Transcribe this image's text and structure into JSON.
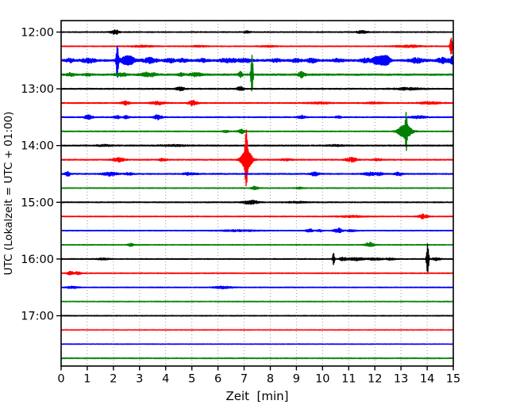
{
  "chart_data": {
    "type": "line",
    "subtype": "seismogram_dayplot",
    "title": "",
    "xlabel": "Zeit  [min]",
    "ylabel": "UTC (Lokalzeit = UTC + 01:00)",
    "x_range": [
      0,
      15
    ],
    "x_ticks": [
      0,
      1,
      2,
      3,
      4,
      5,
      6,
      7,
      8,
      9,
      10,
      11,
      12,
      13,
      14,
      15
    ],
    "y_tick_labels": [
      "12:00",
      "13:00",
      "14:00",
      "15:00",
      "16:00",
      "17:00"
    ],
    "minutes_per_row": 15,
    "grid": "vertical-dotted",
    "legend": "none",
    "colors": {
      "cycle": [
        "#000000",
        "#ff0000",
        "#0000ff",
        "#008000"
      ],
      "grid": "#999999",
      "axis": "#000000",
      "background": "#ffffff"
    },
    "events_format": [
      "t_min",
      "amplitude",
      "dur_min"
    ],
    "rows": [
      {
        "start": "12:00",
        "noise": 0.5,
        "events": [
          [
            2.05,
            3,
            0.3
          ],
          [
            7.1,
            1.2,
            0.25
          ],
          [
            11.5,
            1.6,
            0.4
          ]
        ]
      },
      {
        "start": "12:15",
        "noise": 0.45,
        "events": [
          [
            3.1,
            1.0,
            0.8
          ],
          [
            5.3,
            0.7,
            0.6
          ],
          [
            7.9,
            0.9,
            0.6
          ],
          [
            13.3,
            1.2,
            1.0
          ],
          [
            14.92,
            10,
            0.1
          ]
        ]
      },
      {
        "start": "12:30",
        "noise": 1.1,
        "events": [
          [
            0.35,
            2,
            0.3
          ],
          [
            1.05,
            2.6,
            0.5
          ],
          [
            2.15,
            21,
            0.08
          ],
          [
            2.55,
            5,
            0.55
          ],
          [
            3.4,
            3,
            0.5
          ],
          [
            4.15,
            2.6,
            0.35
          ],
          [
            4.65,
            2,
            0.3
          ],
          [
            5.4,
            1.6,
            0.4
          ],
          [
            6.4,
            2.2,
            0.6
          ],
          [
            7.05,
            2.6,
            0.5
          ],
          [
            8.2,
            1.6,
            0.4
          ],
          [
            9.0,
            2,
            0.4
          ],
          [
            9.6,
            2.4,
            0.35
          ],
          [
            10.6,
            1.6,
            0.4
          ],
          [
            11.6,
            2,
            0.4
          ],
          [
            12.15,
            4.6,
            0.6
          ],
          [
            12.45,
            3.6,
            0.3
          ],
          [
            13.6,
            2.8,
            0.55
          ],
          [
            14.6,
            3,
            0.5
          ],
          [
            14.97,
            3.6,
            0.2
          ]
        ]
      },
      {
        "start": "12:45",
        "noise": 0.9,
        "events": [
          [
            0.35,
            1.8,
            0.3
          ],
          [
            1.0,
            1.4,
            0.3
          ],
          [
            2.3,
            1.8,
            0.45
          ],
          [
            3.35,
            2.8,
            0.55
          ],
          [
            4.6,
            1.8,
            0.25
          ],
          [
            5.15,
            2.2,
            0.45
          ],
          [
            6.85,
            3.2,
            0.18
          ],
          [
            7.3,
            26,
            0.08
          ],
          [
            9.2,
            3.4,
            0.28
          ]
        ]
      },
      {
        "start": "13:00",
        "noise": 0.6,
        "events": [
          [
            4.55,
            2.4,
            0.3
          ],
          [
            6.85,
            2.4,
            0.25
          ],
          [
            13.3,
            1.1,
            1.1
          ]
        ]
      },
      {
        "start": "13:15",
        "noise": 0.55,
        "events": [
          [
            2.45,
            2.4,
            0.3
          ],
          [
            3.7,
            1.8,
            0.55
          ],
          [
            5.05,
            3.4,
            0.35
          ],
          [
            9.9,
            1.0,
            0.8
          ],
          [
            12.0,
            1.1,
            0.6
          ],
          [
            14.1,
            1.4,
            0.7
          ]
        ]
      },
      {
        "start": "13:30",
        "noise": 0.55,
        "events": [
          [
            1.05,
            3,
            0.3
          ],
          [
            2.15,
            1.8,
            0.25
          ],
          [
            2.5,
            1.8,
            0.22
          ],
          [
            3.7,
            2.8,
            0.32
          ],
          [
            9.2,
            2.4,
            0.28
          ],
          [
            10.6,
            1.3,
            0.22
          ],
          [
            13.7,
            1.6,
            0.6
          ]
        ]
      },
      {
        "start": "13:45",
        "noise": 0.5,
        "events": [
          [
            6.3,
            1.4,
            0.22
          ],
          [
            6.9,
            2.4,
            0.28
          ],
          [
            13.15,
            8,
            0.5
          ],
          [
            13.2,
            19,
            0.07
          ]
        ]
      },
      {
        "start": "14:00",
        "noise": 0.65,
        "events": [
          [
            1.6,
            0.9,
            0.6
          ],
          [
            4.3,
            0.9,
            0.9
          ],
          [
            10.5,
            0.8,
            0.6
          ]
        ]
      },
      {
        "start": "14:15",
        "noise": 0.55,
        "events": [
          [
            2.2,
            2.4,
            0.45
          ],
          [
            3.9,
            1.8,
            0.25
          ],
          [
            7.1,
            12,
            0.4
          ],
          [
            7.08,
            27,
            0.09
          ],
          [
            8.6,
            1.0,
            0.4
          ],
          [
            11.1,
            2.8,
            0.4
          ],
          [
            12.1,
            1.2,
            0.35
          ]
        ]
      },
      {
        "start": "14:30",
        "noise": 0.6,
        "events": [
          [
            0.25,
            3,
            0.18
          ],
          [
            1.85,
            2.4,
            0.55
          ],
          [
            2.6,
            1.4,
            0.3
          ],
          [
            4.9,
            1.4,
            0.5
          ],
          [
            9.7,
            2.4,
            0.32
          ],
          [
            11.8,
            1.9,
            0.4
          ],
          [
            12.15,
            1.9,
            0.3
          ],
          [
            12.9,
            1.9,
            0.3
          ]
        ]
      },
      {
        "start": "14:45",
        "noise": 0.45,
        "events": [
          [
            7.4,
            2.4,
            0.22
          ],
          [
            9.1,
            0.9,
            0.3
          ]
        ]
      },
      {
        "start": "15:00",
        "noise": 0.55,
        "events": [
          [
            7.25,
            2.4,
            0.55
          ],
          [
            9.0,
            0.7,
            0.8
          ]
        ]
      },
      {
        "start": "15:15",
        "noise": 0.45,
        "events": [
          [
            11.1,
            1.0,
            1.0
          ],
          [
            13.85,
            2.8,
            0.35
          ]
        ]
      },
      {
        "start": "15:30",
        "noise": 0.45,
        "events": [
          [
            6.8,
            1.0,
            1.3
          ],
          [
            9.5,
            1.8,
            0.25
          ],
          [
            9.9,
            1.4,
            0.22
          ],
          [
            10.6,
            2.8,
            0.32
          ],
          [
            11.1,
            1.2,
            0.3
          ]
        ]
      },
      {
        "start": "15:45",
        "noise": 0.4,
        "events": [
          [
            2.65,
            1.8,
            0.22
          ],
          [
            11.8,
            3.2,
            0.32
          ]
        ]
      },
      {
        "start": "16:00",
        "noise": 0.5,
        "events": [
          [
            1.6,
            0.9,
            0.5
          ],
          [
            10.42,
            7,
            0.08
          ],
          [
            10.8,
            1.9,
            0.3
          ],
          [
            11.3,
            2.1,
            0.5
          ],
          [
            12.0,
            1.5,
            0.5
          ],
          [
            12.6,
            1.1,
            0.3
          ],
          [
            14.02,
            19,
            0.09
          ],
          [
            14.35,
            1.9,
            0.3
          ]
        ]
      },
      {
        "start": "16:15",
        "noise": 0.45,
        "events": [
          [
            0.35,
            2.4,
            0.22
          ],
          [
            0.65,
            1.9,
            0.25
          ]
        ]
      },
      {
        "start": "16:30",
        "noise": 0.45,
        "events": [
          [
            0.4,
            1.1,
            0.5
          ],
          [
            6.2,
            1.4,
            0.7
          ]
        ]
      },
      {
        "start": "16:45",
        "noise": 0.4,
        "events": []
      },
      {
        "start": "17:00",
        "noise": 0.45,
        "events": []
      },
      {
        "start": "17:15",
        "noise": 0.35,
        "events": []
      },
      {
        "start": "17:30",
        "noise": 0.35,
        "events": []
      },
      {
        "start": "17:45",
        "noise": 0.45,
        "events": []
      }
    ]
  }
}
